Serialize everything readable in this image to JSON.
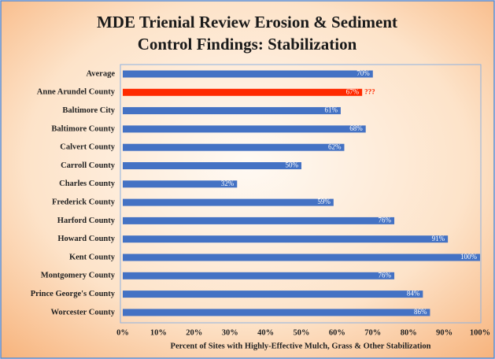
{
  "chart_data": {
    "type": "barh",
    "title": [
      "MDE Trienial Review Erosion & Sediment",
      "Control Findings: Stabilization"
    ],
    "categories": [
      "Average",
      "Anne Arundel County",
      "Baltimore City",
      "Baltimore County",
      "Calvert County",
      "Carroll County",
      "Charles County",
      "Frederick County",
      "Harford County",
      "Howard County",
      "Kent County",
      "Montgomery County",
      "Prince George's County",
      "Worcester County"
    ],
    "values": [
      70,
      67,
      61,
      68,
      62,
      50,
      32,
      59,
      76,
      91,
      100,
      76,
      84,
      86
    ],
    "value_labels": [
      "70%",
      "67%",
      "61%",
      "68%",
      "62%",
      "50%",
      "32%",
      "59%",
      "76%",
      "91%",
      "100%",
      "76%",
      "84%",
      "86%"
    ],
    "colors": [
      "#4472c4",
      "#ff2a00",
      "#4472c4",
      "#4472c4",
      "#4472c4",
      "#4472c4",
      "#4472c4",
      "#4472c4",
      "#4472c4",
      "#4472c4",
      "#4472c4",
      "#4472c4",
      "#4472c4",
      "#4472c4"
    ],
    "annotation": "???",
    "xlabel": "Percent of Sites with Highly-Effective Mulch, Grass & Other Stabilization",
    "xlim": [
      0,
      100
    ],
    "xticks": [
      {
        "value": 0,
        "label": "0%"
      },
      {
        "value": 10,
        "label": "10%"
      },
      {
        "value": 20,
        "label": "20%"
      },
      {
        "value": 30,
        "label": "30%"
      },
      {
        "value": 40,
        "label": "40%"
      },
      {
        "value": 50,
        "label": "50%"
      },
      {
        "value": 60,
        "label": "60%"
      },
      {
        "value": 70,
        "label": "70%"
      },
      {
        "value": 80,
        "label": "80%"
      },
      {
        "value": 90,
        "label": "90%"
      },
      {
        "value": 100,
        "label": "100%"
      }
    ],
    "grid": false
  }
}
